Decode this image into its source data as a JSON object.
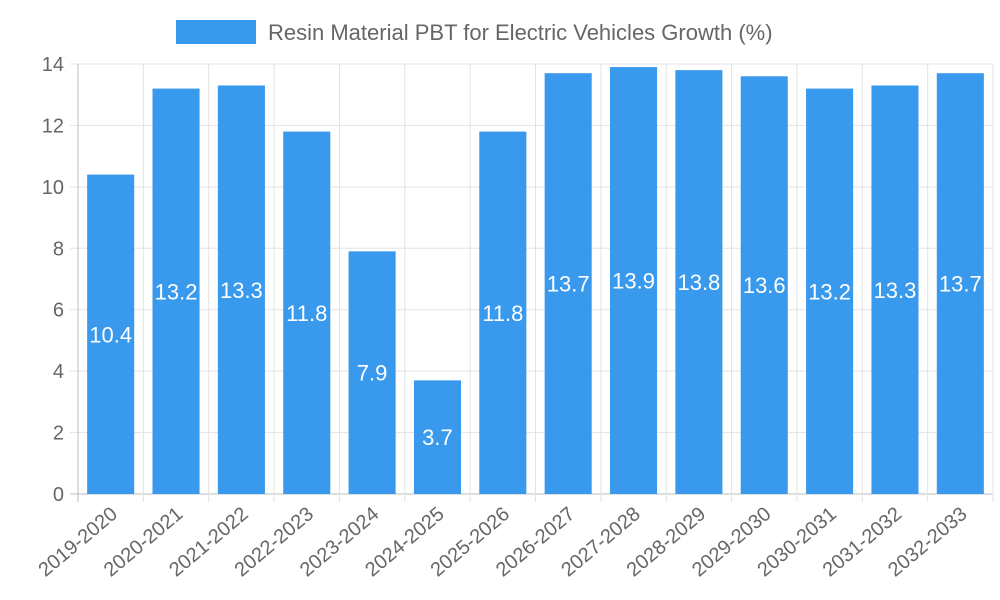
{
  "chart_data": {
    "type": "bar",
    "title": "",
    "xlabel": "",
    "ylabel": "",
    "legend": {
      "position": "top",
      "label": "Resin Material PBT for Electric Vehicles Growth (%)"
    },
    "categories": [
      "2019-2020",
      "2020-2021",
      "2021-2022",
      "2022-2023",
      "2023-2024",
      "2024-2025",
      "2025-2026",
      "2026-2027",
      "2027-2028",
      "2028-2029",
      "2029-2030",
      "2030-2031",
      "2031-2032",
      "2032-2033"
    ],
    "series": [
      {
        "name": "Resin Material PBT for Electric Vehicles Growth (%)",
        "values": [
          10.4,
          13.2,
          13.3,
          11.8,
          7.9,
          3.7,
          11.8,
          13.7,
          13.9,
          13.8,
          13.6,
          13.2,
          13.3,
          13.7
        ]
      }
    ],
    "ylim": [
      0,
      14
    ],
    "yticks": [
      0,
      2,
      4,
      6,
      8,
      10,
      12,
      14
    ],
    "grid": true,
    "colors": {
      "bar": "#3899ed",
      "label": "#ffffff",
      "grid": "#e3e3e3",
      "text": "#666666"
    }
  }
}
